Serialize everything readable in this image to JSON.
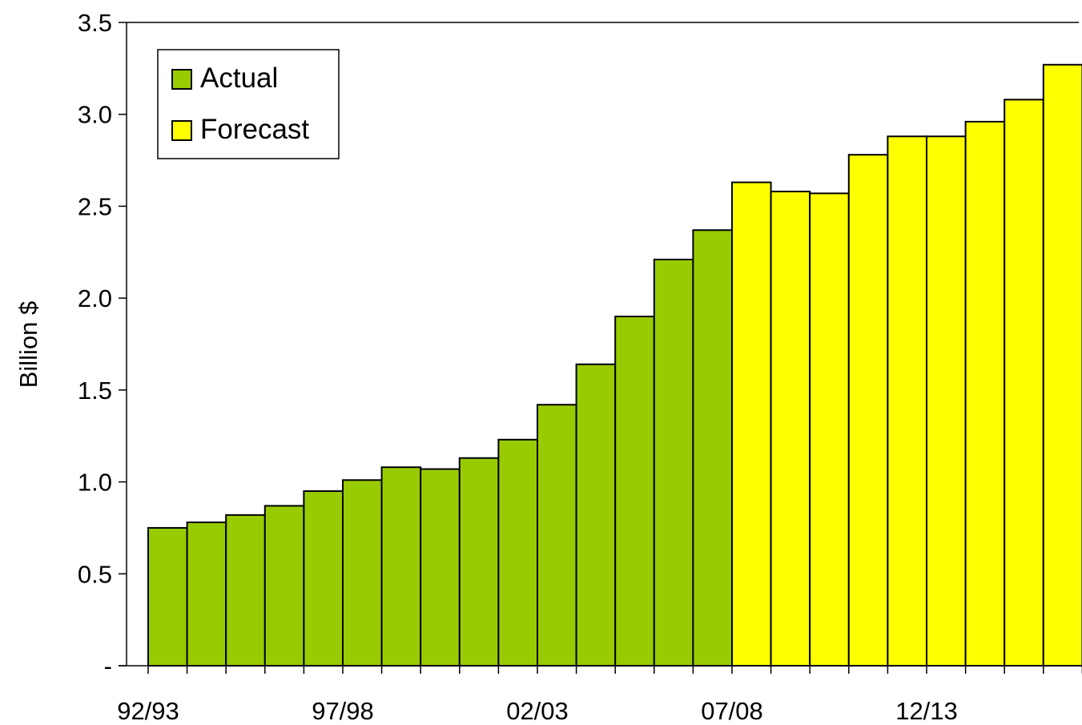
{
  "chart_data": {
    "type": "bar",
    "ylabel": "Billion $",
    "xlabel": "",
    "title": "",
    "ylim": [
      0,
      3.5
    ],
    "y_ticks": [
      {
        "value": 0,
        "label": "-"
      },
      {
        "value": 0.5,
        "label": "0.5"
      },
      {
        "value": 1.0,
        "label": "1.0"
      },
      {
        "value": 1.5,
        "label": "1.5"
      },
      {
        "value": 2.0,
        "label": "2.0"
      },
      {
        "value": 2.5,
        "label": "2.5"
      },
      {
        "value": 3.0,
        "label": "3.0"
      },
      {
        "value": 3.5,
        "label": "3.5"
      }
    ],
    "x_tick_labels": [
      {
        "index": 0,
        "label": "92/93"
      },
      {
        "index": 5,
        "label": "97/98"
      },
      {
        "index": 10,
        "label": "02/03"
      },
      {
        "index": 15,
        "label": "07/08"
      },
      {
        "index": 20,
        "label": "12/13"
      }
    ],
    "category_count": 24,
    "grid": false,
    "legend_position": "top-left",
    "series": [
      {
        "name": "Actual",
        "color": "#99CC00",
        "start_index": 0,
        "values": [
          0.75,
          0.78,
          0.82,
          0.87,
          0.95,
          1.01,
          1.08,
          1.07,
          1.13,
          1.23,
          1.42,
          1.64,
          1.9,
          2.21,
          2.37
        ]
      },
      {
        "name": "Forecast",
        "color": "#FFFF00",
        "start_index": 15,
        "values": [
          2.63,
          2.58,
          2.57,
          2.78,
          2.88,
          2.88,
          2.96,
          3.08,
          3.27
        ]
      }
    ]
  }
}
